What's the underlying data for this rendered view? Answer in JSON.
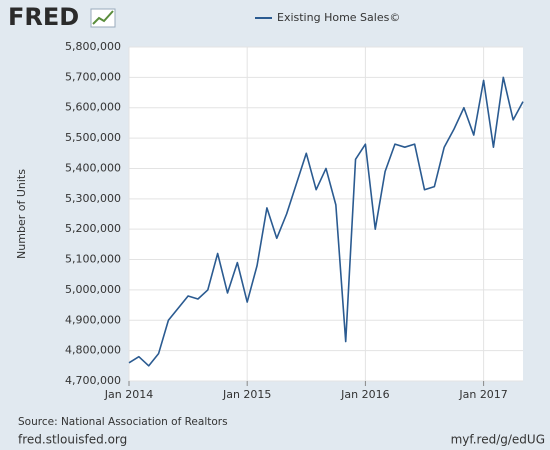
{
  "chart_data": {
    "type": "line",
    "logo": "FRED",
    "source": "Source: National Association of Realtors",
    "site": "fred.stlouisfed.org",
    "short_url": "myf.red/g/edUG",
    "y_label": "Number of Units",
    "legend": "top",
    "grid": true,
    "x": [
      "2014-01",
      "2014-02",
      "2014-03",
      "2014-04",
      "2014-05",
      "2014-06",
      "2014-07",
      "2014-08",
      "2014-09",
      "2014-10",
      "2014-11",
      "2014-12",
      "2015-01",
      "2015-02",
      "2015-03",
      "2015-04",
      "2015-05",
      "2015-06",
      "2015-07",
      "2015-08",
      "2015-09",
      "2015-10",
      "2015-11",
      "2015-12",
      "2016-01",
      "2016-02",
      "2016-03",
      "2016-04",
      "2016-05",
      "2016-06",
      "2016-07",
      "2016-08",
      "2016-09",
      "2016-10",
      "2016-11",
      "2016-12",
      "2017-01",
      "2017-02",
      "2017-03",
      "2017-04",
      "2017-05"
    ],
    "series": [
      {
        "name": "Existing Home Sales©",
        "color": "#2b5b91",
        "values": [
          4760000,
          4780000,
          4750000,
          4790000,
          4900000,
          4940000,
          4980000,
          4970000,
          5000000,
          5120000,
          4990000,
          5090000,
          4960000,
          5080000,
          5270000,
          5170000,
          5250000,
          5350000,
          5450000,
          5330000,
          5400000,
          5280000,
          4830000,
          5430000,
          5480000,
          5200000,
          5390000,
          5480000,
          5470000,
          5480000,
          5330000,
          5340000,
          5470000,
          5530000,
          5600000,
          5510000,
          5690000,
          5470000,
          5700000,
          5560000,
          5620000
        ]
      }
    ],
    "xlim": [
      "2014-01",
      "2017-05"
    ],
    "xticks": [
      {
        "value": "2014-01",
        "label": "Jan 2014"
      },
      {
        "value": "2015-01",
        "label": "Jan 2015"
      },
      {
        "value": "2016-01",
        "label": "Jan 2016"
      },
      {
        "value": "2017-01",
        "label": "Jan 2017"
      }
    ],
    "ylim": [
      4700000,
      5800000
    ],
    "yticks": [
      {
        "value": 4700000,
        "label": "4,700,000"
      },
      {
        "value": 4800000,
        "label": "4,800,000"
      },
      {
        "value": 4900000,
        "label": "4,900,000"
      },
      {
        "value": 5000000,
        "label": "5,000,000"
      },
      {
        "value": 5100000,
        "label": "5,100,000"
      },
      {
        "value": 5200000,
        "label": "5,200,000"
      },
      {
        "value": 5300000,
        "label": "5,300,000"
      },
      {
        "value": 5400000,
        "label": "5,400,000"
      },
      {
        "value": 5500000,
        "label": "5,500,000"
      },
      {
        "value": 5600000,
        "label": "5,600,000"
      },
      {
        "value": 5700000,
        "label": "5,700,000"
      },
      {
        "value": 5800000,
        "label": "5,800,000"
      }
    ]
  }
}
